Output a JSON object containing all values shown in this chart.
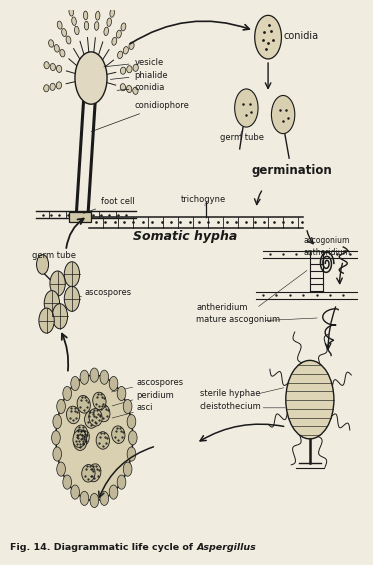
{
  "bg_color": "#f0ece0",
  "line_color": "#1a1a1a",
  "caption_normal": "Fig. 14. Diagrammatic life cycle of ",
  "caption_italic": "Aspergillus"
}
